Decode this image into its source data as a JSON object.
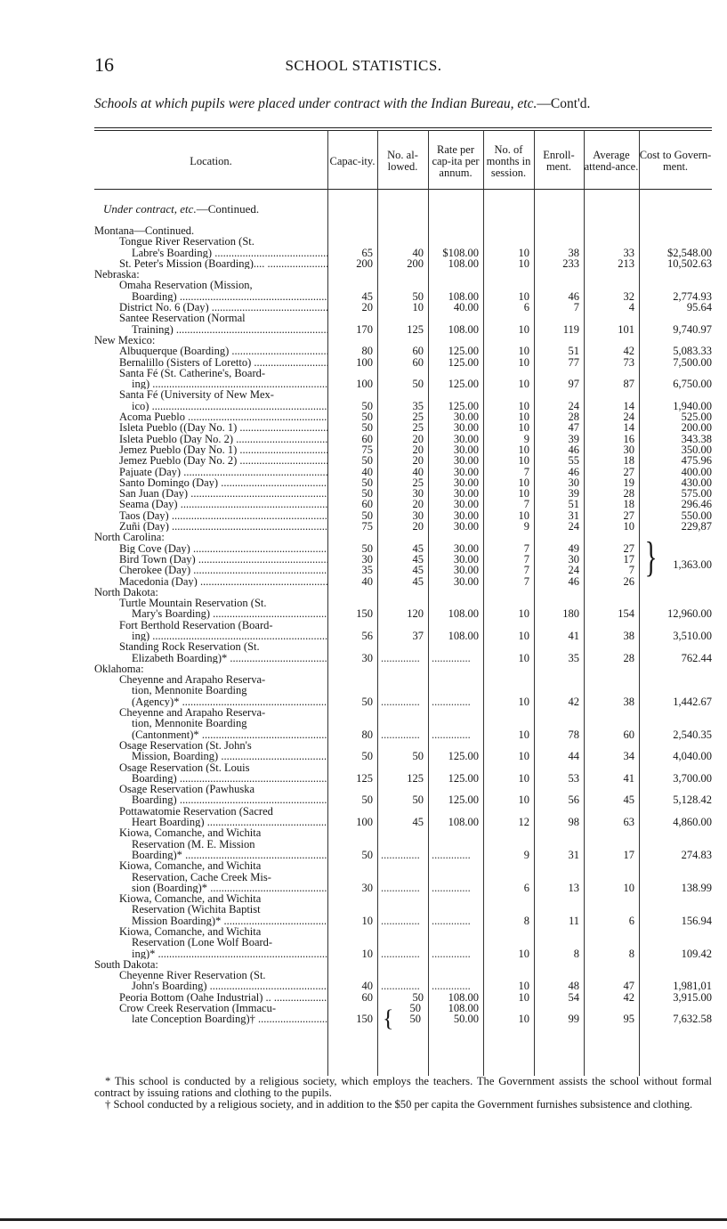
{
  "page": {
    "number": "16",
    "running_head": "SCHOOL STATISTICS.",
    "subtitle": "Schools at which pupils were placed under contract with the Indian Bureau, etc.",
    "subtitle_tail": "—Cont'd."
  },
  "table": {
    "headers": [
      "Location.",
      "Capac-ity.",
      "No. al-lowed.",
      "Rate per cap-ita per annum.",
      "No. of months in session.",
      "Enroll-ment.",
      "Average attend-ance.",
      "Cost to Govern-ment."
    ],
    "section_label": "Under contract, etc.",
    "section_tail": "—Continued.",
    "rows": [
      {
        "state": "Montana—Continued."
      },
      {
        "lines": [
          "Tongue River Reservation (St.",
          "Labre's Boarding)"
        ],
        "v": [
          "65",
          "40",
          "$108.00",
          "10",
          "38",
          "33",
          "$2,548.00"
        ]
      },
      {
        "lines": [
          "St. Peter's Mission (Boarding)...."
        ],
        "v": [
          "200",
          "200",
          "108.00",
          "10",
          "233",
          "213",
          "10,502.63"
        ]
      },
      {
        "state": "Nebraska:"
      },
      {
        "lines": [
          "Omaha Reservation (Mission,",
          "Boarding)"
        ],
        "v": [
          "45",
          "50",
          "108.00",
          "10",
          "46",
          "32",
          "2,774.93"
        ]
      },
      {
        "lines": [
          "District No. 6 (Day)"
        ],
        "v": [
          "20",
          "10",
          "40.00",
          "6",
          "7",
          "4",
          "95.64"
        ]
      },
      {
        "lines": [
          "Santee Reservation (Normal",
          "Training)"
        ],
        "v": [
          "170",
          "125",
          "108.00",
          "10",
          "119",
          "101",
          "9,740.97"
        ]
      },
      {
        "state": "New Mexico:"
      },
      {
        "lines": [
          "Albuquerque (Boarding)"
        ],
        "v": [
          "80",
          "60",
          "125.00",
          "10",
          "51",
          "42",
          "5,083.33"
        ]
      },
      {
        "lines": [
          "Bernalillo (Sisters of Loretto)"
        ],
        "v": [
          "100",
          "60",
          "125.00",
          "10",
          "77",
          "73",
          "7,500.00"
        ]
      },
      {
        "lines": [
          "Santa Fé (St. Catherine's, Board-",
          "ing)"
        ],
        "v": [
          "100",
          "50",
          "125.00",
          "10",
          "97",
          "87",
          "6,750.00"
        ]
      },
      {
        "lines": [
          "Santa Fé (University of New Mex-",
          "ico)"
        ],
        "v": [
          "50",
          "35",
          "125.00",
          "10",
          "24",
          "14",
          "1,940.00"
        ]
      },
      {
        "lines": [
          "Acoma Pueblo"
        ],
        "v": [
          "50",
          "25",
          "30.00",
          "10",
          "28",
          "24",
          "525.00"
        ]
      },
      {
        "lines": [
          "Isleta Pueblo ((Day No. 1)"
        ],
        "v": [
          "50",
          "25",
          "30.00",
          "10",
          "47",
          "14",
          "200.00"
        ]
      },
      {
        "lines": [
          "Isleta Pueblo (Day No. 2)"
        ],
        "v": [
          "60",
          "20",
          "30.00",
          "9",
          "39",
          "16",
          "343.38"
        ]
      },
      {
        "lines": [
          "Jemez Pueblo (Day No. 1)"
        ],
        "v": [
          "75",
          "20",
          "30.00",
          "10",
          "46",
          "30",
          "350.00"
        ]
      },
      {
        "lines": [
          "Jemez Pueblo (Day No. 2)"
        ],
        "v": [
          "50",
          "20",
          "30.00",
          "10",
          "55",
          "18",
          "475.96"
        ]
      },
      {
        "lines": [
          "Pajuate (Day)"
        ],
        "v": [
          "40",
          "40",
          "30.00",
          "7",
          "46",
          "27",
          "400.00"
        ]
      },
      {
        "lines": [
          "Santo Domingo (Day)"
        ],
        "v": [
          "50",
          "25",
          "30.00",
          "10",
          "30",
          "19",
          "430.00"
        ]
      },
      {
        "lines": [
          "San Juan (Day)"
        ],
        "v": [
          "50",
          "30",
          "30.00",
          "10",
          "39",
          "28",
          "575.00"
        ]
      },
      {
        "lines": [
          "Seama (Day)"
        ],
        "v": [
          "60",
          "20",
          "30.00",
          "7",
          "51",
          "18",
          "296.46"
        ]
      },
      {
        "lines": [
          "Taos (Day)"
        ],
        "v": [
          "50",
          "30",
          "30.00",
          "10",
          "31",
          "27",
          "550.00"
        ]
      },
      {
        "lines": [
          "Zuñi (Day)"
        ],
        "v": [
          "75",
          "20",
          "30.00",
          "9",
          "24",
          "10",
          "229,87"
        ]
      },
      {
        "state": "North Carolina:"
      },
      {
        "lines": [
          "Big Cove (Day)"
        ],
        "v": [
          "50",
          "45",
          "30.00",
          "7",
          "49",
          "27",
          ""
        ]
      },
      {
        "lines": [
          "Bird Town (Day)"
        ],
        "v": [
          "30",
          "45",
          "30.00",
          "7",
          "30",
          "17",
          ""
        ]
      },
      {
        "lines": [
          "Cherokee (Day)"
        ],
        "v": [
          "35",
          "45",
          "30.00",
          "7",
          "24",
          "7",
          ""
        ]
      },
      {
        "lines": [
          "Macedonia (Day)"
        ],
        "v": [
          "40",
          "45",
          "30.00",
          "7",
          "46",
          "26",
          ""
        ]
      },
      {
        "state": "North Dakota:"
      },
      {
        "lines": [
          "Turtle Mountain Reservation (St.",
          "Mary's Boarding)"
        ],
        "v": [
          "150",
          "120",
          "108.00",
          "10",
          "180",
          "154",
          "12,960.00"
        ]
      },
      {
        "lines": [
          "Fort Berthold Reservation (Board-",
          "ing)"
        ],
        "v": [
          "56",
          "37",
          "108.00",
          "10",
          "41",
          "38",
          "3,510.00"
        ]
      },
      {
        "lines": [
          "Standing Rock Reservation (St.",
          "Elizabeth Boarding)*"
        ],
        "v": [
          "30",
          null,
          null,
          "10",
          "35",
          "28",
          "762.44"
        ]
      },
      {
        "state": "Oklahoma:"
      },
      {
        "lines": [
          "Cheyenne and Arapaho Reserva-",
          "tion, Mennonite Boarding",
          "(Agency)*"
        ],
        "v": [
          "50",
          null,
          null,
          "10",
          "42",
          "38",
          "1,442.67"
        ]
      },
      {
        "lines": [
          "Cheyenne and Arapaho Reserva-",
          "tion, Mennonite Boarding",
          "(Cantonment)*"
        ],
        "v": [
          "80",
          null,
          null,
          "10",
          "78",
          "60",
          "2,540.35"
        ]
      },
      {
        "lines": [
          "Osage Reservation (St. John's",
          "Mission, Boarding)"
        ],
        "v": [
          "50",
          "50",
          "125.00",
          "10",
          "44",
          "34",
          "4,040.00"
        ]
      },
      {
        "lines": [
          "Osage Reservation (St. Louis",
          "Boarding)"
        ],
        "v": [
          "125",
          "125",
          "125.00",
          "10",
          "53",
          "41",
          "3,700.00"
        ]
      },
      {
        "lines": [
          "Osage Reservation (Pawhuska",
          "Boarding)"
        ],
        "v": [
          "50",
          "50",
          "125.00",
          "10",
          "56",
          "45",
          "5,128.42"
        ]
      },
      {
        "lines": [
          "Pottawatomie Reservation (Sacred",
          "Heart Boarding)"
        ],
        "v": [
          "100",
          "45",
          "108.00",
          "12",
          "98",
          "63",
          "4,860.00"
        ]
      },
      {
        "lines": [
          "Kiowa, Comanche, and Wichita",
          "Reservation (M. E. Mission",
          "Boarding)*"
        ],
        "v": [
          "50",
          null,
          null,
          "9",
          "31",
          "17",
          "274.83"
        ]
      },
      {
        "lines": [
          "Kiowa, Comanche, and Wichita",
          "Reservation, Cache Creek Mis-",
          "sion (Boarding)*"
        ],
        "v": [
          "30",
          null,
          null,
          "6",
          "13",
          "10",
          "138.99"
        ]
      },
      {
        "lines": [
          "Kiowa, Comanche, and Wichita",
          "Reservation (Wichita Baptist",
          "Mission Boarding)*"
        ],
        "v": [
          "10",
          null,
          null,
          "8",
          "11",
          "6",
          "156.94"
        ]
      },
      {
        "lines": [
          "Kiowa, Comanche, and Wichita",
          "Reservation (Lone Wolf Board-",
          "ing)*"
        ],
        "v": [
          "10",
          null,
          null,
          "10",
          "8",
          "8",
          "109.42"
        ]
      },
      {
        "state": "South Dakota:"
      },
      {
        "lines": [
          "Cheyenne River Reservation (St.",
          "John's Boarding)"
        ],
        "v": [
          "40",
          null,
          null,
          "10",
          "48",
          "47",
          "1,981,01"
        ]
      },
      {
        "lines": [
          "Peoria Bottom (Oahe Industrial) .."
        ],
        "v": [
          "60",
          "50",
          "108.00",
          "10",
          "54",
          "42",
          "3,915.00"
        ]
      },
      {
        "lines": [
          "Crow Creek Reservation (Immacu-",
          "late Conception Boarding)†"
        ],
        "v": [
          "150",
          "50\n50",
          "108.00\n50.00",
          "10",
          "99",
          "95",
          "7,632.58"
        ]
      }
    ],
    "north_carolina_combined_cost": "1,363.00"
  },
  "footnotes": [
    "* This school is conducted by a religious society, which employs the teachers. The Government assists the school without formal contract by issuing rations and clothing to the pupils.",
    "† School conducted by a religious society, and in addition to the $50 per capita the Government furnishes subsistence and clothing."
  ]
}
